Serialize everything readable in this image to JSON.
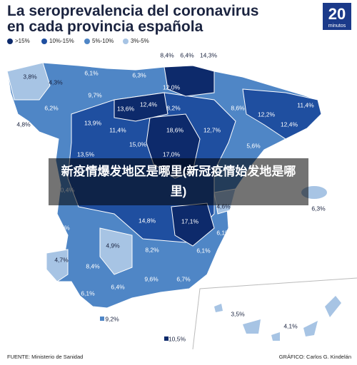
{
  "header": {
    "title_line1": "La seroprevalencia del coronavirus",
    "title_line2": "en cada provincia española",
    "logo_number": "20",
    "logo_text": "minutos"
  },
  "legend": [
    {
      "name": ">15%",
      "color": "#0d2a6b"
    },
    {
      "name": "10%-15%",
      "color": "#1f4fa0"
    },
    {
      "name": "5%-10%",
      "color": "#4f86c6"
    },
    {
      "name": "3%-5%",
      "color": "#a7c4e4"
    }
  ],
  "map": {
    "labels": [
      "3,8%",
      "4,3%",
      "6,1%",
      "6,3%",
      "8,4%",
      "6,4%",
      "14,3%",
      "12,0%",
      "9,7%",
      "12,4%",
      "8,2%",
      "8,6%",
      "12,2%",
      "11,4%",
      "6,2%",
      "4,8%",
      "13,6%",
      "13,9%",
      "11,4%",
      "18,6%",
      "12,7%",
      "12,4%",
      "15,0%",
      "5,6%",
      "13,5%",
      "17,0%",
      "10,4%",
      "4,6%",
      "6,3%",
      "6,5%",
      "14,8%",
      "17,1%",
      "6,1%",
      "4,9%",
      "4,7%",
      "8,2%",
      "6,1%",
      "8,4%",
      "9,6%",
      "6,7%",
      "6,4%",
      "6,1%",
      "9,2%",
      "3,5%",
      "4,1%",
      "10,5%"
    ]
  },
  "banner": "新疫情爆发地区是哪里(新冠疫情始发地是哪里)",
  "footer": {
    "source": "FUENTE: Ministerio de Sanidad",
    "credit": "GRÁFICO: Carlos G. Kindelán"
  }
}
